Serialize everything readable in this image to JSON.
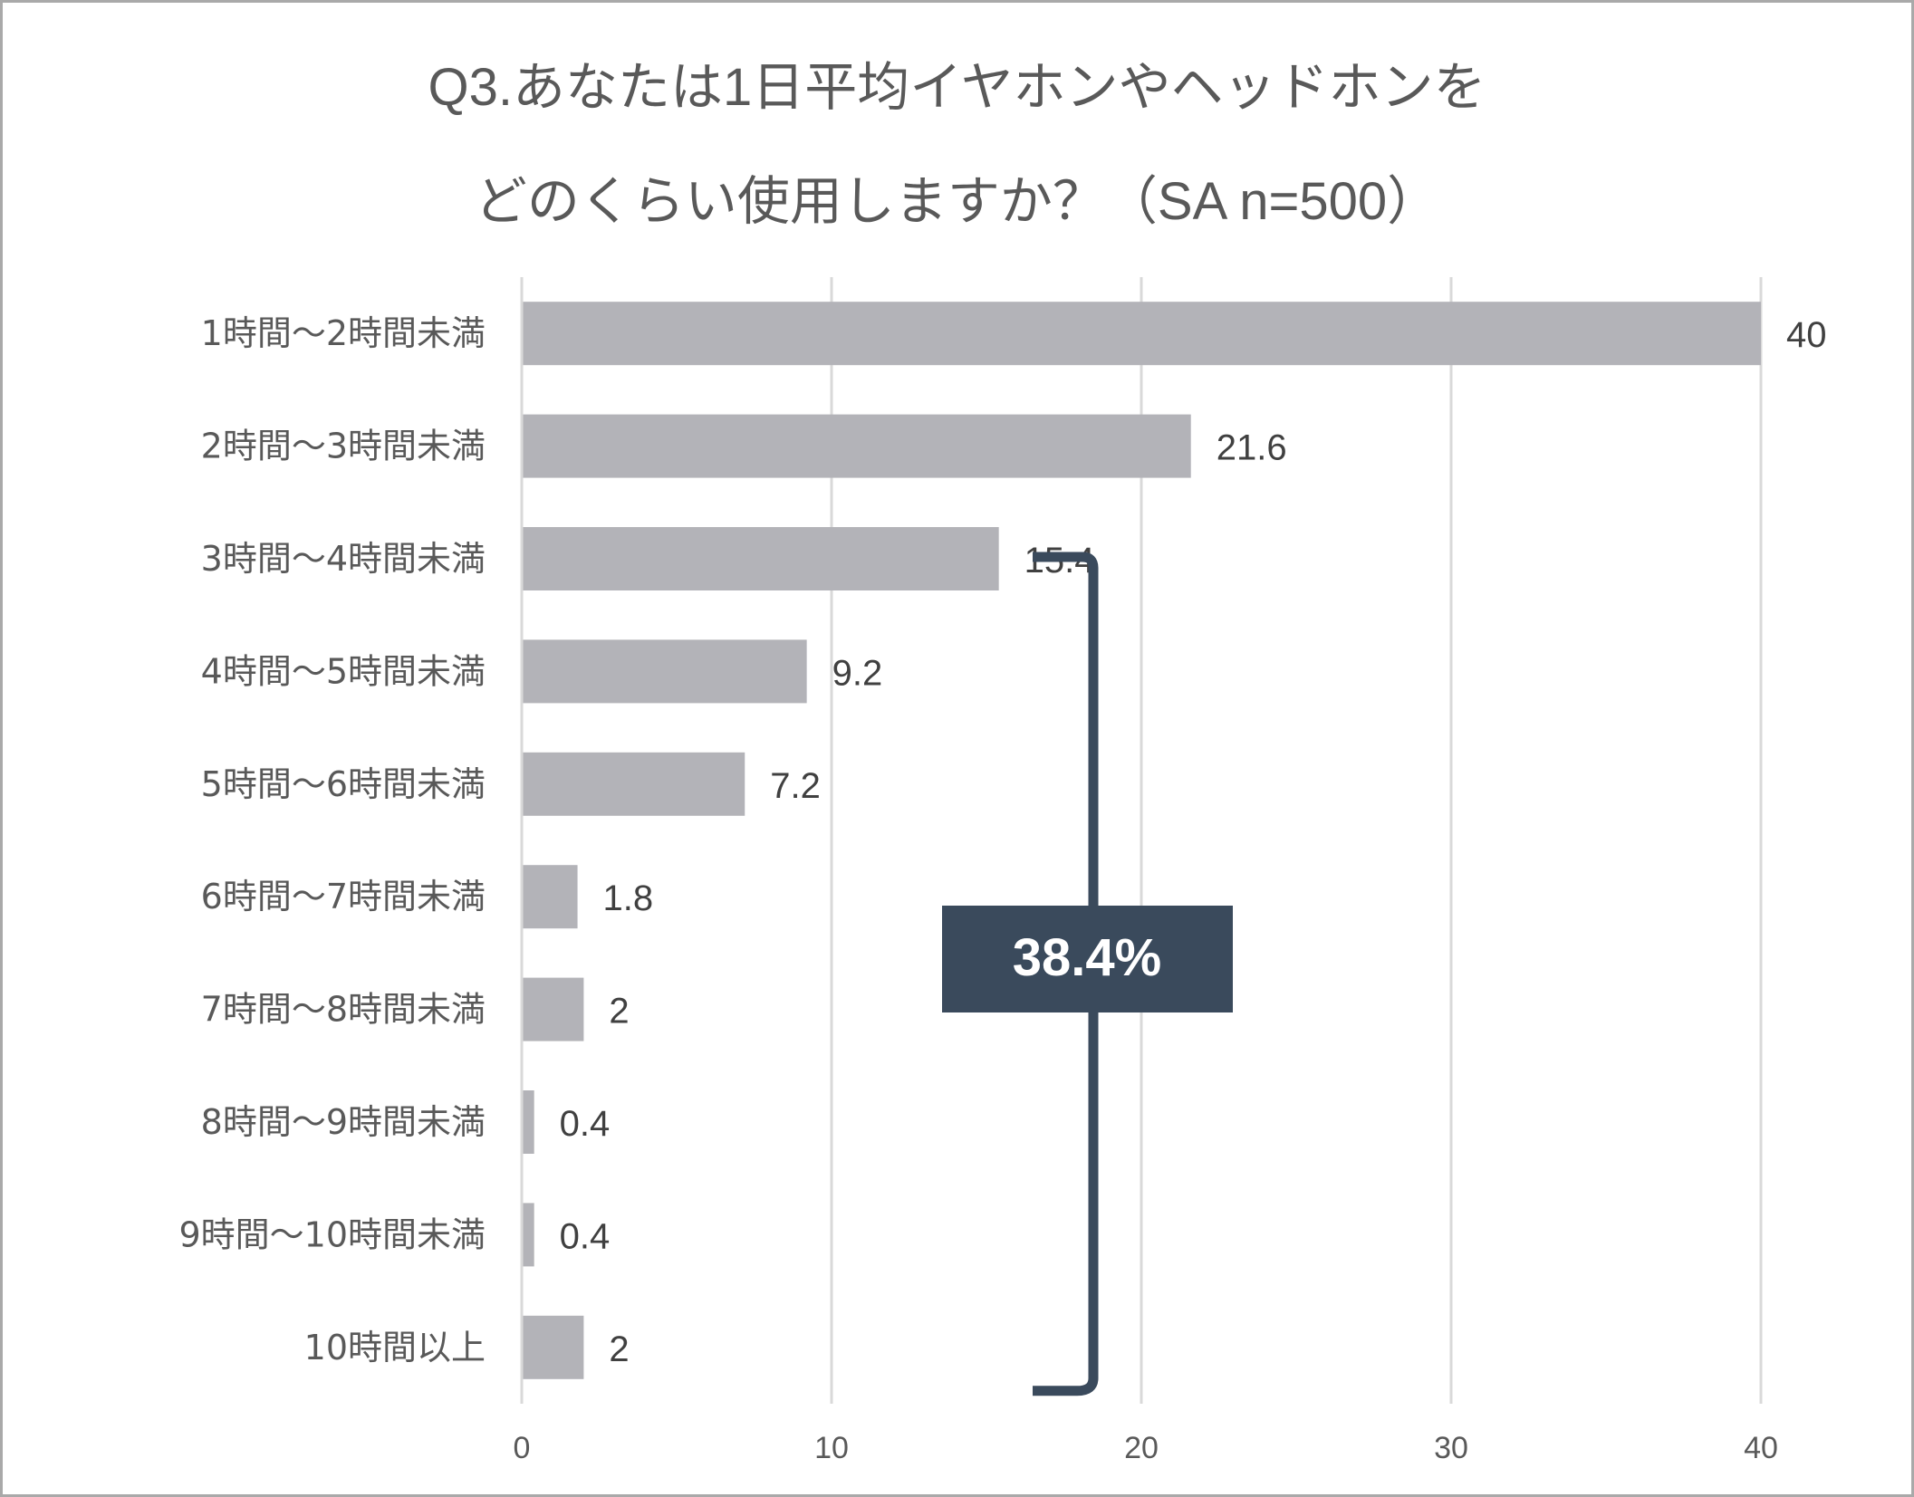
{
  "title": {
    "line1": "Q3.あなたは1日平均イヤホンやヘッドホンを",
    "line2": "どのくらい使用しますか？（SA n=500）"
  },
  "chart_data": {
    "type": "bar",
    "orientation": "horizontal",
    "title": "Q3.あなたは1日平均イヤホンやヘッドホンをどのくらい使用しますか？（SA n=500）",
    "categories": [
      "1時間〜2時間未満",
      "2時間〜3時間未満",
      "3時間〜4時間未満",
      "4時間〜5時間未満",
      "5時間〜6時間未満",
      "6時間〜7時間未満",
      "7時間〜8時間未満",
      "8時間〜9時間未満",
      "9時間〜10時間未満",
      "10時間以上"
    ],
    "values": [
      40,
      21.6,
      15.4,
      9.2,
      7.2,
      1.8,
      2,
      0.4,
      0.4,
      2
    ],
    "value_labels": [
      "40",
      "21.6",
      "15.4",
      "9.2",
      "7.2",
      "1.8",
      "2",
      "0.4",
      "0.4",
      "2"
    ],
    "xlim": [
      0,
      40
    ],
    "xticks": [
      0,
      10,
      20,
      30,
      40
    ],
    "xlabel": "",
    "ylabel": "",
    "grid": true,
    "legend": "none",
    "bar_color": "#b3b3b8",
    "annotation": {
      "text": "38.4%",
      "bracket_from_category": "3時間〜4時間未満",
      "bracket_to_category": "10時間以上",
      "color": "#3a4a5c"
    }
  }
}
